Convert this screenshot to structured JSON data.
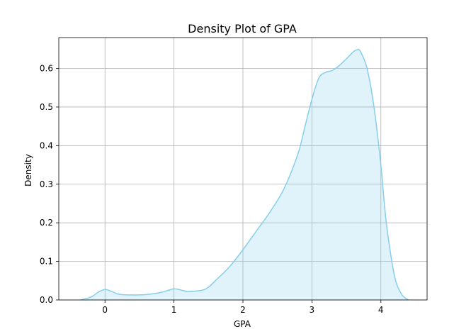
{
  "chart_data": {
    "type": "area",
    "title": "Density Plot of GPA",
    "xlabel": "GPA",
    "ylabel": "Density",
    "xlim": [
      -0.67,
      4.67
    ],
    "ylim": [
      0,
      0.68
    ],
    "xticks": [
      0,
      1,
      2,
      3,
      4
    ],
    "yticks": [
      0.0,
      0.1,
      0.2,
      0.3,
      0.4,
      0.5,
      0.6
    ],
    "grid": true,
    "legend": "none",
    "colors": {
      "line": "#87CEEB",
      "fill": "#87CEEB",
      "fill_opacity": 0.25,
      "grid": "#b0b0b0",
      "axes": "#000000"
    },
    "series": [
      {
        "x": [
          -0.35,
          -0.2,
          -0.1,
          0.0,
          0.1,
          0.2,
          0.4,
          0.6,
          0.8,
          0.9,
          1.0,
          1.1,
          1.2,
          1.4,
          1.5,
          1.6,
          1.8,
          2.0,
          2.2,
          2.4,
          2.6,
          2.8,
          2.9,
          3.0,
          3.1,
          3.2,
          3.3,
          3.4,
          3.5,
          3.6,
          3.65,
          3.7,
          3.8,
          3.9,
          4.0,
          4.05,
          4.1,
          4.2,
          4.3,
          4.4
        ],
        "y": [
          0.0,
          0.008,
          0.02,
          0.027,
          0.022,
          0.015,
          0.013,
          0.014,
          0.019,
          0.024,
          0.029,
          0.026,
          0.022,
          0.025,
          0.033,
          0.05,
          0.085,
          0.13,
          0.18,
          0.23,
          0.29,
          0.38,
          0.45,
          0.52,
          0.575,
          0.59,
          0.595,
          0.608,
          0.625,
          0.643,
          0.648,
          0.645,
          0.6,
          0.5,
          0.35,
          0.25,
          0.17,
          0.06,
          0.015,
          0.0
        ]
      }
    ]
  }
}
